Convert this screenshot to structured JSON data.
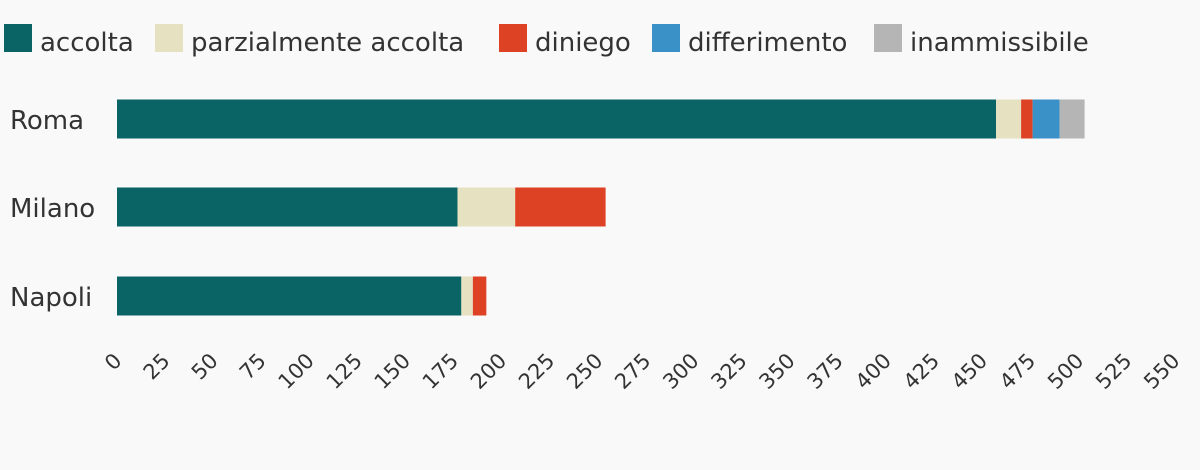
{
  "chart_data": {
    "type": "bar",
    "orientation": "horizontal",
    "stacked": true,
    "categories": [
      "Roma",
      "Milano",
      "Napoli"
    ],
    "series": [
      {
        "name": "accolta",
        "color": "#0a6466",
        "values": [
          457,
          177,
          179
        ]
      },
      {
        "name": "parzialmente accolta",
        "color": "#e6e1c1",
        "values": [
          13,
          30,
          6
        ]
      },
      {
        "name": "diniego",
        "color": "#dd4224",
        "values": [
          6,
          47,
          7
        ]
      },
      {
        "name": "differimento",
        "color": "#3a91c8",
        "values": [
          14,
          0,
          0
        ]
      },
      {
        "name": "inammissibile",
        "color": "#b5b5b5",
        "values": [
          13,
          0,
          0
        ]
      }
    ],
    "xlim": [
      0,
      550
    ],
    "xticks": [
      "0",
      "25",
      "50",
      "75",
      "100",
      "125",
      "150",
      "175",
      "200",
      "225",
      "250",
      "275",
      "300",
      "325",
      "350",
      "375",
      "400",
      "425",
      "450",
      "475",
      "500",
      "525",
      "550"
    ],
    "legend_position": "top",
    "grid": false
  }
}
